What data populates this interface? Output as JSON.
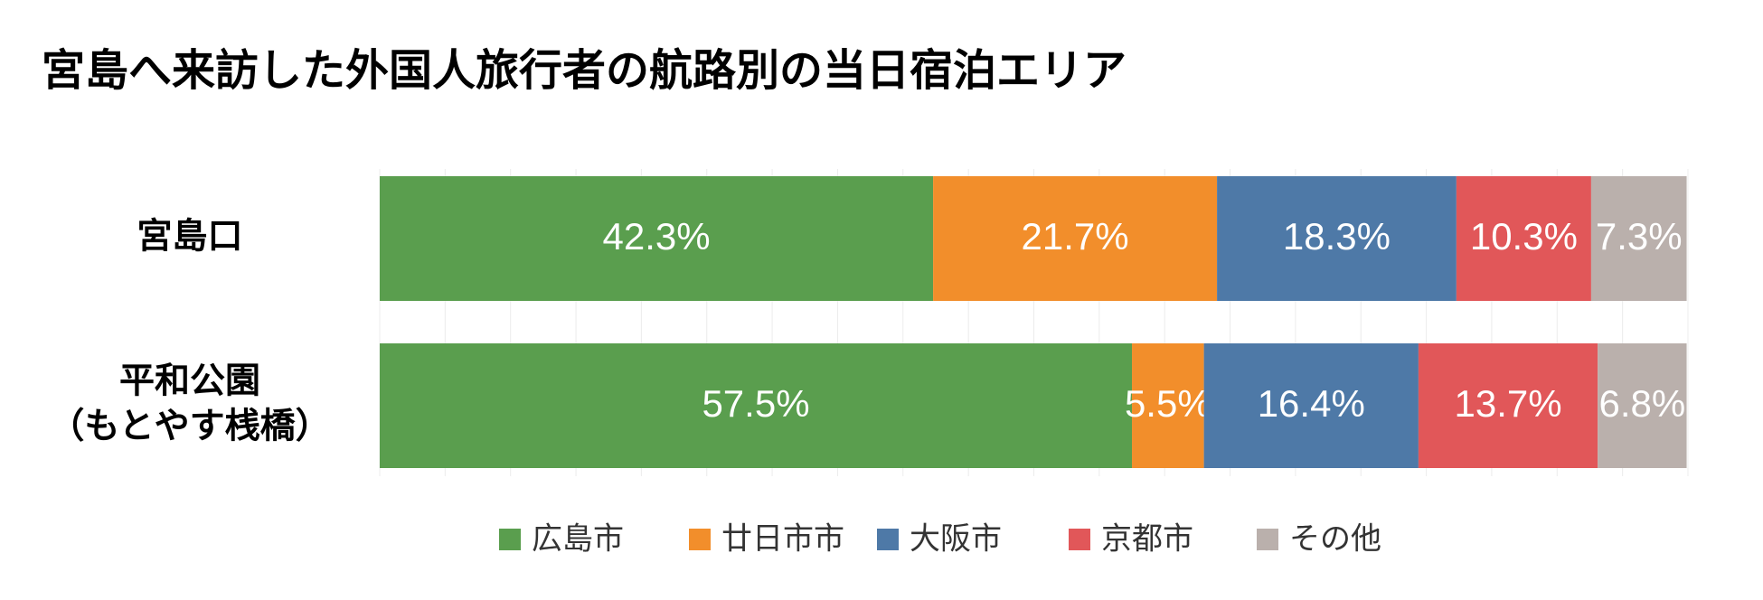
{
  "chart_data": {
    "type": "bar",
    "orientation": "horizontal",
    "stacked": "percent",
    "title": "宮島へ来訪した外国人旅行者の航路別の当日宿泊エリア",
    "categories": [
      [
        "宮島口"
      ],
      [
        "平和公園",
        "（もとやす桟橋）"
      ]
    ],
    "series": [
      {
        "name": "広島市",
        "color": "#5a9e4e",
        "values": [
          42.3,
          57.5
        ],
        "labels": [
          "42.3%",
          "57.5%"
        ]
      },
      {
        "name": "廿日市市",
        "color": "#f28e2b",
        "values": [
          21.7,
          5.5
        ],
        "labels": [
          "21.7%",
          "5.5%"
        ]
      },
      {
        "name": "大阪市",
        "color": "#4e79a7",
        "values": [
          18.3,
          16.4
        ],
        "labels": [
          "18.3%",
          "16.4%"
        ]
      },
      {
        "name": "京都市",
        "color": "#e15759",
        "values": [
          10.3,
          13.7
        ],
        "labels": [
          "10.3%",
          "13.7%"
        ]
      },
      {
        "name": "その他",
        "color": "#bab0ac",
        "values": [
          7.3,
          6.8
        ],
        "labels": [
          "7.3%",
          "6.8%"
        ]
      }
    ],
    "xlim": [
      0,
      100
    ],
    "grid": true,
    "legend_position": "bottom"
  }
}
